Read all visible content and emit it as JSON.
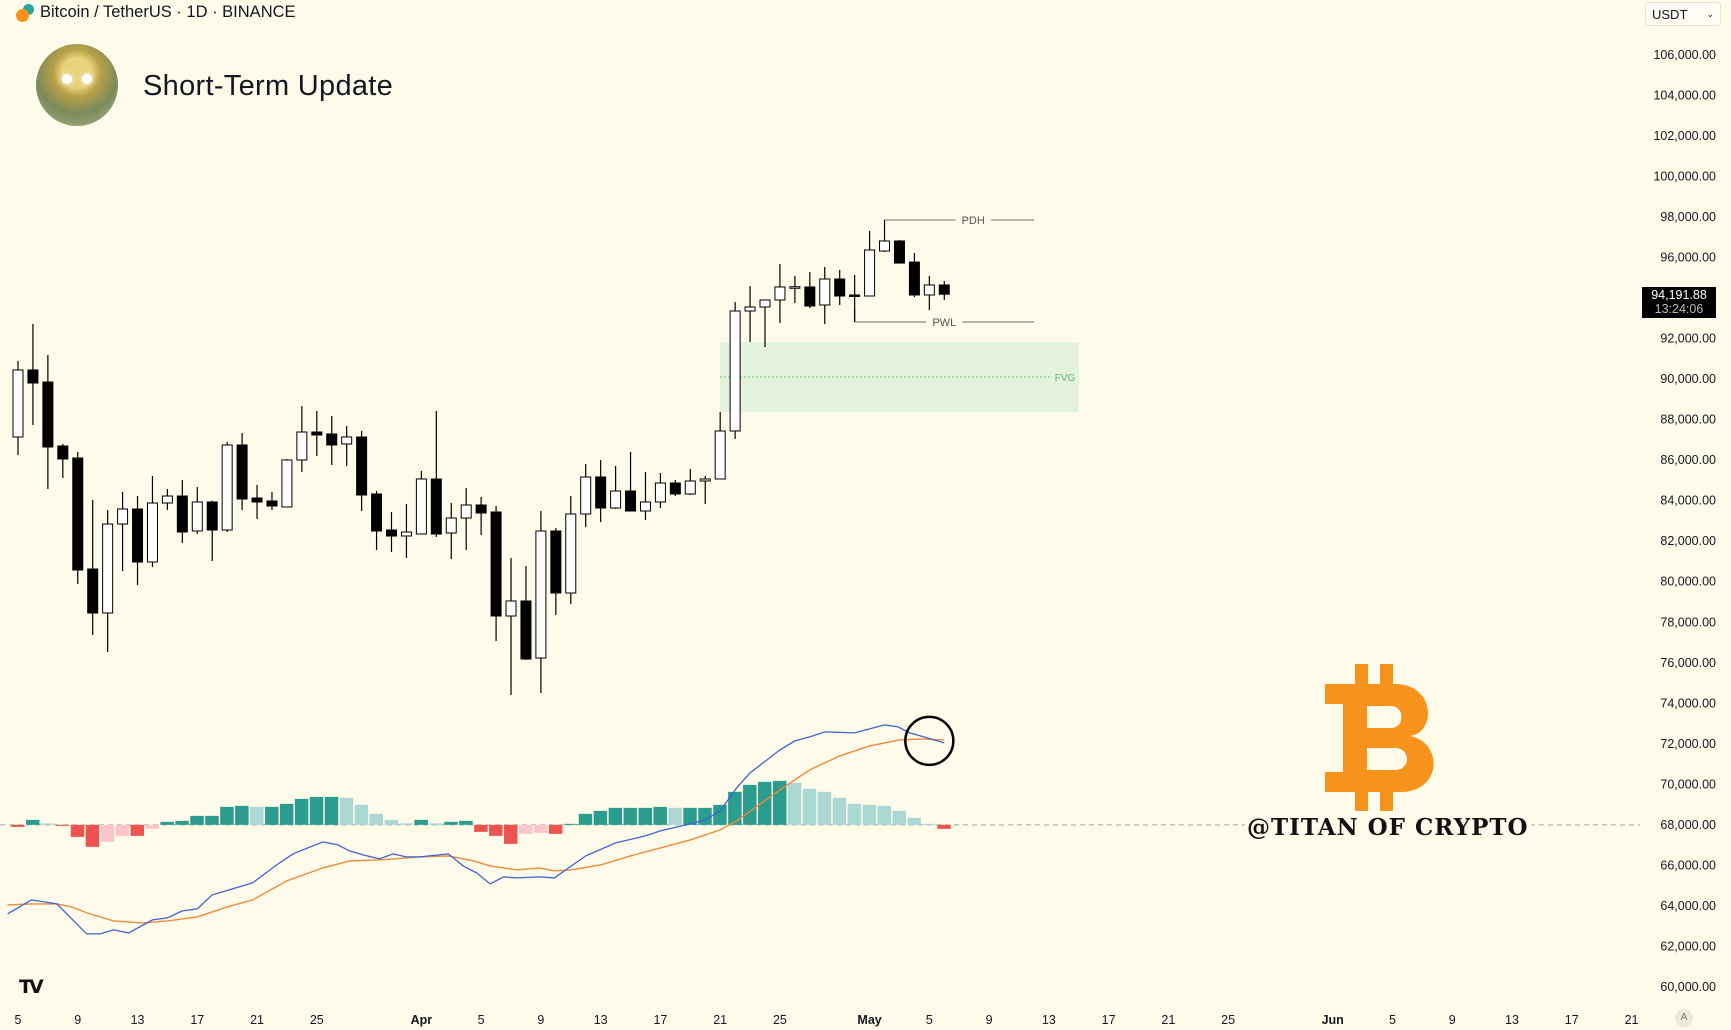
{
  "header": {
    "symbol": "Bitcoin / TetherUS · 1D · BINANCE",
    "title": "Short-Term Update"
  },
  "currency_select": {
    "value": "USDT"
  },
  "last_price": {
    "price": "94,191.88",
    "countdown": "13:24:06"
  },
  "watermark": {
    "handle": "@TITAN OF CRYPTO",
    "logo": "bitcoin-logo"
  },
  "tv_logo": "TV",
  "auto_button": "A",
  "colors": {
    "bg": "#fefbea",
    "up_hist": "#2a9d8f",
    "up_hist_fall": "#acd8d4",
    "down_hist": "#ef5350",
    "down_hist_rise": "#fbc5cd",
    "macd": "#3d63d8",
    "signal": "#ef8a3a",
    "fvg": "#e3f3dc",
    "btc": "#f7931a"
  },
  "chart_data": {
    "type": "candlestick",
    "title": "Bitcoin / TetherUS · 1D · BINANCE",
    "start_date": "Mar 5",
    "ylim": [
      60000,
      106000
    ],
    "y_ticks": [
      "106,000.00",
      "104,000.00",
      "102,000.00",
      "100,000.00",
      "98,000.00",
      "96,000.00",
      "94,000.00",
      "92,000.00",
      "90,000.00",
      "88,000.00",
      "86,000.00",
      "84,000.00",
      "82,000.00",
      "80,000.00",
      "78,000.00",
      "76,000.00",
      "74,000.00",
      "72,000.00",
      "70,000.00",
      "68,000.00",
      "66,000.00",
      "64,000.00",
      "62,000.00",
      "60,000.00"
    ],
    "x_ticks": [
      {
        "label": "5",
        "day": 0
      },
      {
        "label": "9",
        "day": 4
      },
      {
        "label": "13",
        "day": 8
      },
      {
        "label": "17",
        "day": 12
      },
      {
        "label": "21",
        "day": 16
      },
      {
        "label": "25",
        "day": 20
      },
      {
        "label": "Apr",
        "day": 27,
        "bold": true
      },
      {
        "label": "5",
        "day": 31
      },
      {
        "label": "9",
        "day": 35
      },
      {
        "label": "13",
        "day": 39
      },
      {
        "label": "17",
        "day": 43
      },
      {
        "label": "21",
        "day": 47
      },
      {
        "label": "25",
        "day": 51
      },
      {
        "label": "May",
        "day": 57,
        "bold": true
      },
      {
        "label": "5",
        "day": 61
      },
      {
        "label": "9",
        "day": 65
      },
      {
        "label": "13",
        "day": 69
      },
      {
        "label": "17",
        "day": 73
      },
      {
        "label": "21",
        "day": 77
      },
      {
        "label": "25",
        "day": 81
      },
      {
        "label": "Jun",
        "day": 88,
        "bold": true
      },
      {
        "label": "5",
        "day": 92
      },
      {
        "label": "9",
        "day": 96
      },
      {
        "label": "13",
        "day": 100
      },
      {
        "label": "17",
        "day": 104
      },
      {
        "label": "21",
        "day": 108
      }
    ],
    "ohlc": [
      [
        87145,
        90896,
        86256,
        90452
      ],
      [
        90452,
        92722,
        87737,
        89810
      ],
      [
        89859,
        91192,
        84578,
        86651
      ],
      [
        86700,
        86799,
        85121,
        86059
      ],
      [
        86108,
        86404,
        79889,
        80580
      ],
      [
        80629,
        84035,
        77371,
        78457
      ],
      [
        78457,
        83541,
        76532,
        82850
      ],
      [
        82850,
        84430,
        80530,
        83591
      ],
      [
        83591,
        84232,
        79839,
        80975
      ],
      [
        80975,
        85220,
        80728,
        83887
      ],
      [
        83887,
        84578,
        83541,
        84232
      ],
      [
        84232,
        85022,
        81912,
        82455
      ],
      [
        82505,
        84677,
        82357,
        83937
      ],
      [
        83937,
        84000,
        81025,
        82554
      ],
      [
        82554,
        86898,
        82455,
        86750
      ],
      [
        86750,
        87342,
        83541,
        84085
      ],
      [
        84134,
        84775,
        83097,
        83937
      ],
      [
        83986,
        84430,
        83541,
        83739
      ],
      [
        83690,
        86059,
        83690,
        86010
      ],
      [
        86010,
        88675,
        85417,
        87391
      ],
      [
        87391,
        88428,
        86207,
        87243
      ],
      [
        87293,
        88182,
        85763,
        86750
      ],
      [
        86799,
        87688,
        85713,
        87145
      ],
      [
        87145,
        87441,
        83492,
        84282
      ],
      [
        84331,
        84479,
        81567,
        82505
      ],
      [
        82554,
        83442,
        81467,
        82258
      ],
      [
        82258,
        83838,
        81172,
        82455
      ],
      [
        82357,
        85467,
        82357,
        85072
      ],
      [
        85072,
        88428,
        82208,
        82357
      ],
      [
        82406,
        83887,
        81123,
        83146
      ],
      [
        83146,
        84628,
        81567,
        83788
      ],
      [
        83788,
        84183,
        82308,
        83393
      ],
      [
        83442,
        83739,
        77075,
        78309
      ],
      [
        78309,
        81172,
        74410,
        79050
      ],
      [
        79050,
        80777,
        76137,
        76186
      ],
      [
        76236,
        83492,
        74509,
        82505
      ],
      [
        82505,
        82653,
        78359,
        79444
      ],
      [
        79444,
        84232,
        78902,
        83344
      ],
      [
        83344,
        85812,
        82702,
        85170
      ],
      [
        85170,
        86010,
        82949,
        83640
      ],
      [
        83640,
        85714,
        83591,
        84479
      ],
      [
        84479,
        86404,
        83492,
        83492
      ],
      [
        83492,
        85417,
        83048,
        83937
      ],
      [
        83937,
        85368,
        83640,
        84874
      ],
      [
        84874,
        85022,
        84232,
        84331
      ],
      [
        84331,
        85565,
        84282,
        84973
      ],
      [
        84973,
        85220,
        83838,
        85072
      ],
      [
        85072,
        88378,
        85072,
        87441
      ],
      [
        87441,
        93808,
        87046,
        93364
      ],
      [
        93364,
        94598,
        91834,
        93561
      ],
      [
        93561,
        93907,
        91587,
        93907
      ],
      [
        93907,
        95684,
        92772,
        94549
      ],
      [
        94549,
        95092,
        93759,
        94560
      ],
      [
        94549,
        95289,
        93512,
        93611
      ],
      [
        93660,
        95536,
        92722,
        94944
      ],
      [
        94944,
        95388,
        93660,
        94104
      ],
      [
        94154,
        95141,
        92821,
        94104
      ],
      [
        94104,
        97313,
        94104,
        96375
      ],
      [
        96326,
        97856,
        96277,
        96820
      ],
      [
        96820,
        96869,
        95729,
        95729
      ],
      [
        95778,
        96227,
        94055,
        94154
      ],
      [
        94154,
        95092,
        93408,
        94648
      ],
      [
        94648,
        94845,
        93907,
        94192
      ]
    ],
    "annotations": {
      "pdh": {
        "label": "PDH",
        "price": 97856,
        "from_day": 58,
        "to_day": 68
      },
      "pwl": {
        "label": "PWL",
        "price": 92821,
        "from_day": 56,
        "to_day": 68
      },
      "fvg": {
        "label": "FVG",
        "top": 91834,
        "bottom": 88378,
        "from_day": 47,
        "to_day": 71
      }
    },
    "macd": {
      "zero_price": 68000,
      "histogram": [
        -2,
        5,
        1.5,
        -0.5,
        -12,
        -22,
        -17,
        -11,
        -11,
        -4,
        3,
        4,
        9,
        9,
        18,
        19,
        18,
        18,
        21,
        26,
        28,
        28,
        27,
        20,
        11,
        5,
        1.5,
        5,
        1.5,
        3,
        4,
        -7,
        -11,
        -19,
        -9,
        -8,
        -9,
        1,
        11,
        14,
        17,
        17,
        17,
        18,
        17,
        17,
        17,
        20,
        33,
        40,
        43,
        44,
        42,
        36,
        33,
        27,
        21,
        20,
        19,
        14,
        7,
        1,
        -4
      ],
      "macd_line": [
        [
          -0.7,
          -89
        ],
        [
          0.9,
          -75
        ],
        [
          2.6,
          -79
        ],
        [
          4.6,
          -109
        ],
        [
          5.5,
          -109
        ],
        [
          6.4,
          -105
        ],
        [
          7.4,
          -108
        ],
        [
          9,
          -95
        ],
        [
          10,
          -93
        ],
        [
          11,
          -86
        ],
        [
          12,
          -84
        ],
        [
          13,
          -70
        ],
        [
          15.7,
          -58
        ],
        [
          17.5,
          -38
        ],
        [
          18.4,
          -29
        ],
        [
          20.4,
          -17
        ],
        [
          21.4,
          -20
        ],
        [
          22.2,
          -26
        ],
        [
          23.1,
          -30
        ],
        [
          24.2,
          -34
        ],
        [
          25.1,
          -29
        ],
        [
          26,
          -32
        ],
        [
          26.9,
          -32
        ],
        [
          28.8,
          -29
        ],
        [
          29.8,
          -41
        ],
        [
          30.7,
          -48
        ],
        [
          31.6,
          -59
        ],
        [
          32.5,
          -52
        ],
        [
          33.4,
          -53
        ],
        [
          34.9,
          -52
        ],
        [
          35.9,
          -53
        ],
        [
          38,
          -31
        ],
        [
          40,
          -18
        ],
        [
          42,
          -11
        ],
        [
          43,
          -6
        ],
        [
          45,
          1
        ],
        [
          46,
          5
        ],
        [
          47,
          14
        ],
        [
          48.1,
          37
        ],
        [
          49,
          52
        ],
        [
          51,
          75
        ],
        [
          52,
          84
        ],
        [
          53,
          88
        ],
        [
          54,
          93
        ],
        [
          56,
          92
        ],
        [
          57,
          96
        ],
        [
          58,
          100
        ],
        [
          58.9,
          98
        ],
        [
          59.7,
          92
        ],
        [
          62,
          82
        ]
      ],
      "signal_line": [
        [
          -0.7,
          -80
        ],
        [
          0.9,
          -79
        ],
        [
          2.6,
          -79
        ],
        [
          3.6,
          -82
        ],
        [
          4.6,
          -88
        ],
        [
          6.4,
          -96
        ],
        [
          8.3,
          -98
        ],
        [
          10,
          -96
        ],
        [
          12,
          -92
        ],
        [
          14,
          -82
        ],
        [
          15.7,
          -75
        ],
        [
          18,
          -56
        ],
        [
          20.4,
          -43
        ],
        [
          22.2,
          -36
        ],
        [
          24.2,
          -35
        ],
        [
          26.9,
          -32
        ],
        [
          28.8,
          -31
        ],
        [
          30.5,
          -36
        ],
        [
          31.6,
          -41
        ],
        [
          33.4,
          -45
        ],
        [
          34.9,
          -43
        ],
        [
          35.9,
          -46
        ],
        [
          37,
          -45
        ],
        [
          39,
          -40
        ],
        [
          41,
          -31
        ],
        [
          43,
          -23
        ],
        [
          45,
          -15
        ],
        [
          47,
          -5
        ],
        [
          48.1,
          4
        ],
        [
          49.5,
          19
        ],
        [
          51,
          35
        ],
        [
          53,
          55
        ],
        [
          55,
          69
        ],
        [
          57,
          79
        ],
        [
          59,
          85
        ],
        [
          60.4,
          86
        ],
        [
          62,
          85
        ]
      ],
      "crossover_marker_day": 61
    }
  }
}
